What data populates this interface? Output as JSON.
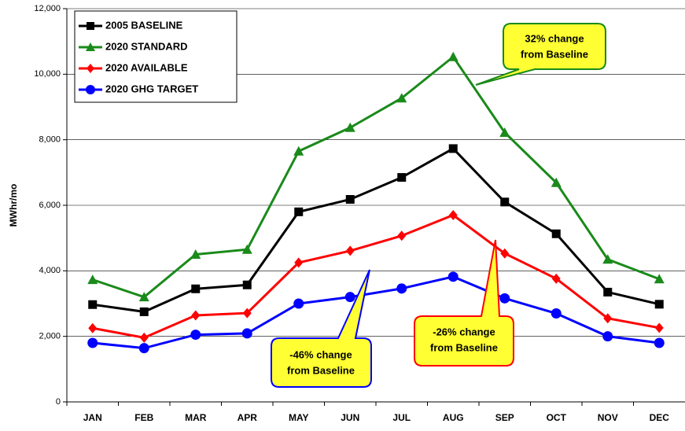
{
  "chart_data": {
    "type": "line",
    "y_label": "MWhr/mo",
    "categories": [
      "JAN",
      "FEB",
      "MAR",
      "APR",
      "MAY",
      "JUN",
      "JUL",
      "AUG",
      "SEP",
      "OCT",
      "NOV",
      "DEC"
    ],
    "series": [
      {
        "name": "2005 BASELINE",
        "color": "#000000",
        "marker": "square",
        "values": [
          2970,
          2750,
          3450,
          3570,
          5800,
          6180,
          6850,
          7730,
          6100,
          5130,
          3350,
          2980
        ]
      },
      {
        "name": "2020 STANDARD",
        "color": "#1a8a1a",
        "marker": "triangle",
        "values": [
          3730,
          3200,
          4500,
          4650,
          7650,
          8370,
          9270,
          10530,
          8220,
          6690,
          4350,
          3750
        ]
      },
      {
        "name": "2020 AVAILABLE",
        "color": "#ff0000",
        "marker": "diamond",
        "values": [
          2250,
          1960,
          2640,
          2710,
          4250,
          4610,
          5070,
          5700,
          4530,
          3760,
          2550,
          2260
        ]
      },
      {
        "name": "2020 GHG TARGET",
        "color": "#0000ff",
        "marker": "circle",
        "values": [
          1800,
          1640,
          2050,
          2090,
          3000,
          3200,
          3460,
          3820,
          3160,
          2700,
          2000,
          1800
        ]
      }
    ],
    "ylim": [
      0,
      12000
    ],
    "yticks": [
      0,
      {
        "value": 2000,
        "label": "2,000"
      },
      {
        "value": 4000,
        "label": "4,000"
      },
      {
        "value": 6000,
        "label": "6,000"
      },
      {
        "value": 8000,
        "label": "8,000"
      },
      {
        "value": 10000,
        "label": "10,000"
      },
      {
        "value": 12000,
        "label": "12,000"
      }
    ],
    "grid": true,
    "legend": "top-left",
    "annotations": [
      {
        "lines": [
          "32% change",
          "from Baseline"
        ]
      },
      {
        "lines": [
          "-26% change",
          "from Baseline"
        ]
      },
      {
        "lines": [
          "-46% change",
          "from Baseline"
        ]
      }
    ]
  }
}
